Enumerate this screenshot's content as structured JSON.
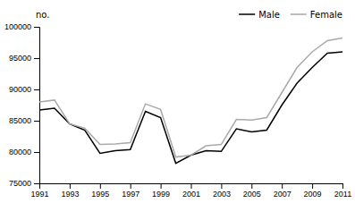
{
  "chart_data": {
    "type": "line",
    "ylabel": "no.",
    "x": [
      1991,
      1992,
      1993,
      1994,
      1995,
      1996,
      1997,
      1998,
      1999,
      2000,
      2001,
      2002,
      2003,
      2004,
      2005,
      2006,
      2007,
      2008,
      2009,
      2010,
      2011
    ],
    "series": [
      {
        "name": "Male",
        "color": "#000000",
        "values": [
          86700,
          87000,
          84500,
          83500,
          79800,
          80200,
          80400,
          86500,
          85500,
          78200,
          79500,
          80200,
          80100,
          83700,
          83200,
          83500,
          87500,
          91000,
          93500,
          95800,
          96000
        ]
      },
      {
        "name": "Female",
        "color": "#aaaaaa",
        "values": [
          88000,
          88300,
          84500,
          83800,
          81200,
          81300,
          81500,
          87700,
          86800,
          79200,
          79500,
          81000,
          81200,
          85200,
          85100,
          85500,
          89500,
          93500,
          96000,
          97800,
          98200
        ]
      }
    ],
    "xlim": [
      1991,
      2011
    ],
    "xticks": [
      1991,
      1993,
      1995,
      1997,
      1999,
      2001,
      2003,
      2005,
      2007,
      2009,
      2011
    ],
    "ylim": [
      75000,
      100000
    ],
    "yticks": [
      75000,
      80000,
      85000,
      90000,
      95000,
      100000
    ],
    "grid": false,
    "legend": "upper right"
  }
}
